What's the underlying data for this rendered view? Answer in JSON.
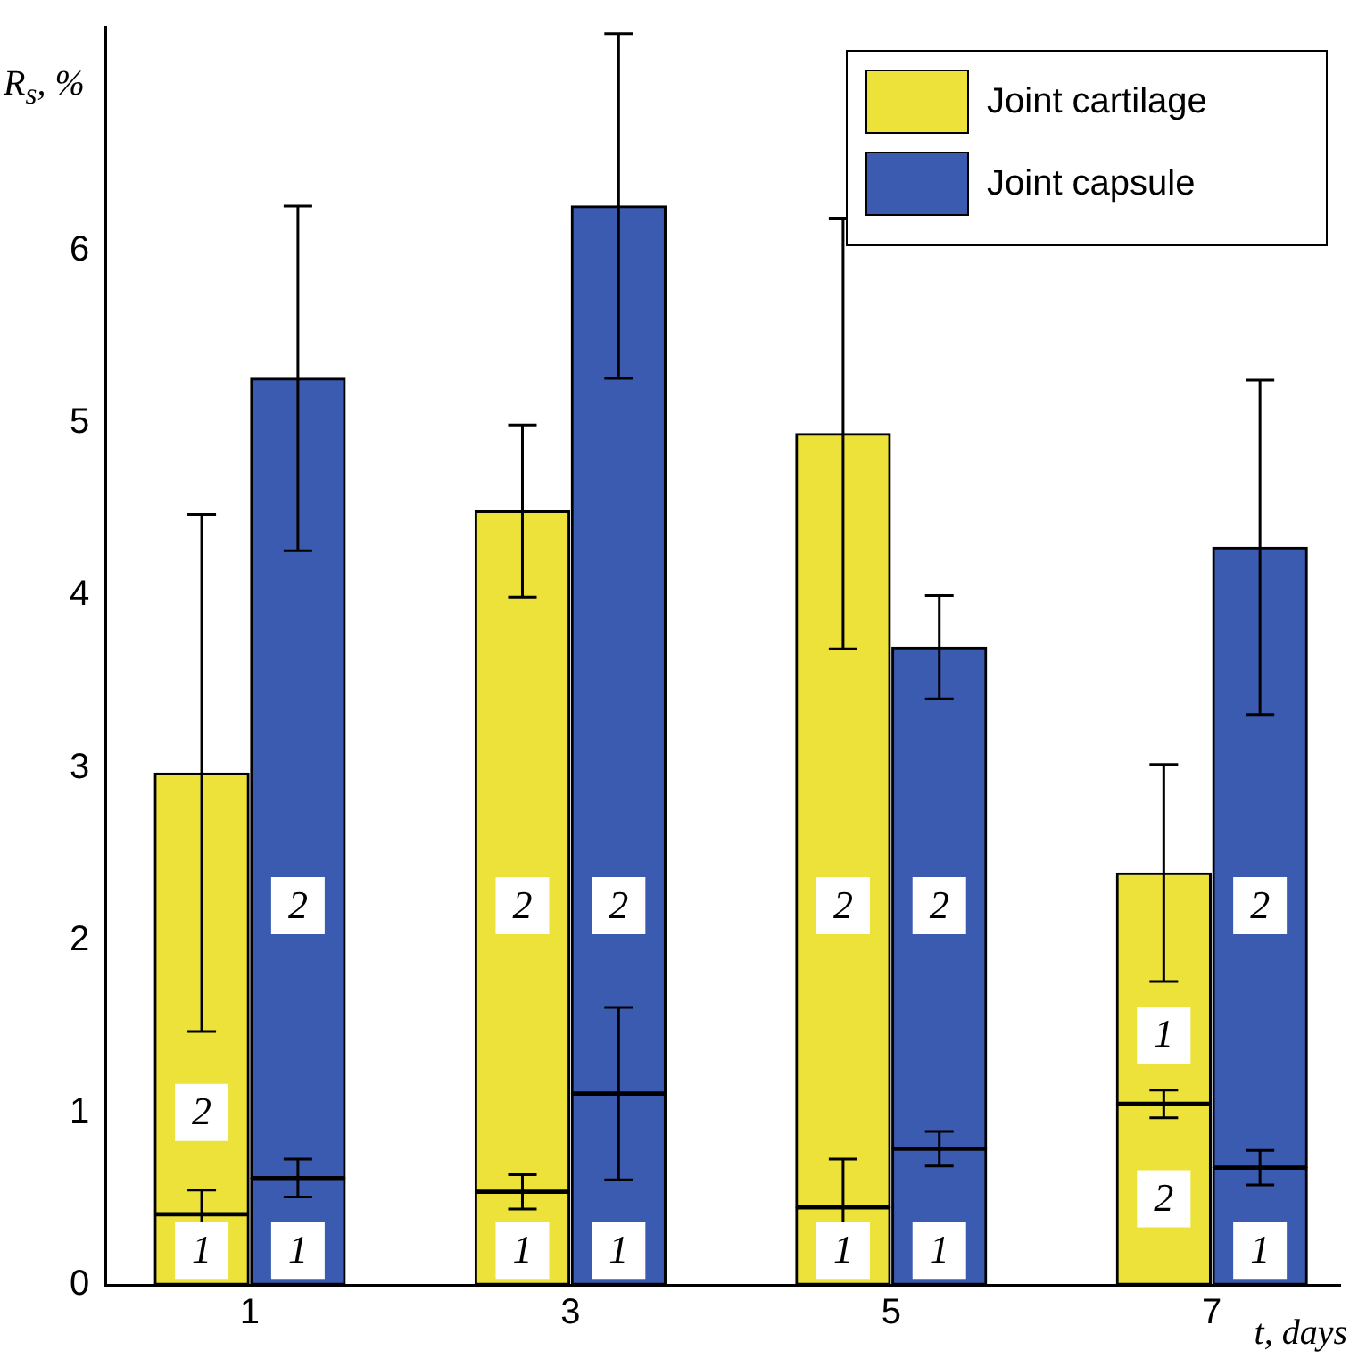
{
  "chart_data": {
    "type": "bar",
    "xlabel": "t, days",
    "ylabel": "R$_{s}$, %",
    "stacked": true,
    "legend": "top right",
    "xlim": [
      0.1,
      7.8
    ],
    "xticks": [
      1,
      3,
      5,
      7
    ],
    "ylim": [
      0,
      7.3
    ],
    "yticks": [
      0,
      1,
      2,
      3,
      4,
      5,
      6
    ],
    "grid": false,
    "x": [
      0.7,
      1.3,
      2.7,
      3.3,
      4.7,
      5.3,
      6.7,
      7.3
    ],
    "series": [
      {
        "name": "Joint cartilage",
        "color": "#ece23a",
        "values": [
          0.41,
          null,
          0.54,
          null,
          0.45,
          null,
          1.05,
          null
        ],
        "errors": [
          0.14,
          null,
          0.1,
          null,
          0.28,
          null,
          0.08,
          null
        ]
      },
      {
        "color": "#ece23a",
        "values": [
          2.56,
          null,
          3.95,
          null,
          4.49,
          null,
          1.34,
          null
        ],
        "errors": [
          1.5,
          null,
          0.5,
          null,
          1.25,
          null,
          0.63,
          null
        ]
      },
      {
        "name": "Joint capsule",
        "color": "#3a5bb0",
        "values": [
          null,
          0.62,
          null,
          1.11,
          null,
          0.79,
          null,
          0.68
        ],
        "errors": [
          null,
          0.11,
          null,
          0.5,
          null,
          0.1,
          null,
          0.1
        ]
      },
      {
        "color": "#3a5bb0",
        "values": [
          null,
          4.64,
          null,
          5.15,
          null,
          2.91,
          null,
          3.6
        ],
        "errors": [
          null,
          1.0,
          null,
          1.0,
          null,
          0.3,
          null,
          0.97
        ]
      }
    ],
    "annotations": [
      {
        "text": "1",
        "x": 0.7,
        "y": 0.2
      },
      {
        "text": "2",
        "x": 0.7,
        "y": 1.0
      },
      {
        "text": "1",
        "x": 1.3,
        "y": 0.2
      },
      {
        "text": "2",
        "x": 1.3,
        "y": 2.2
      },
      {
        "text": "1",
        "x": 2.7,
        "y": 0.2
      },
      {
        "text": "2",
        "x": 2.7,
        "y": 2.2
      },
      {
        "text": "1",
        "x": 3.3,
        "y": 0.2
      },
      {
        "text": "2",
        "x": 3.3,
        "y": 2.2
      },
      {
        "text": "1",
        "x": 4.7,
        "y": 0.2
      },
      {
        "text": "2",
        "x": 4.7,
        "y": 2.2
      },
      {
        "text": "1",
        "x": 5.3,
        "y": 0.2
      },
      {
        "text": "2",
        "x": 5.3,
        "y": 2.2
      },
      {
        "text": "2",
        "x": 6.7,
        "y": 0.5
      },
      {
        "text": "1",
        "x": 6.7,
        "y": 1.45
      },
      {
        "text": "1",
        "x": 7.3,
        "y": 0.2
      },
      {
        "text": "2",
        "x": 7.3,
        "y": 2.2
      }
    ]
  }
}
